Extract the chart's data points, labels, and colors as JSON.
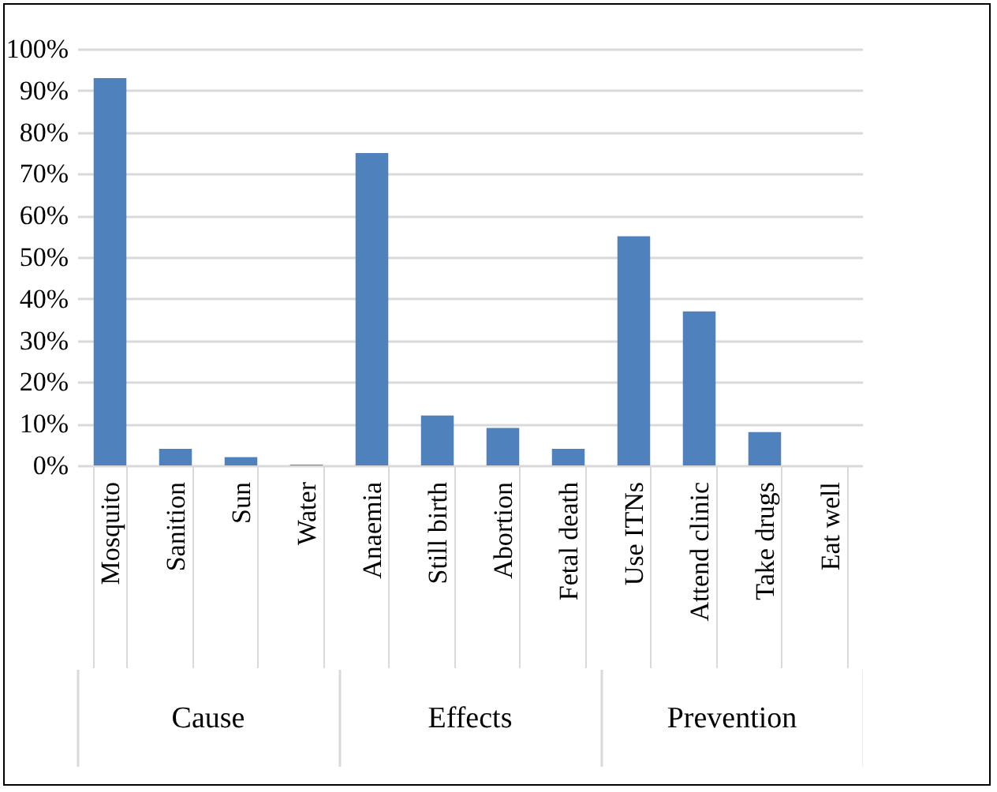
{
  "chart_data": {
    "type": "bar",
    "categories": [
      "Mosquito",
      "Sanition",
      "Sun",
      "Water",
      "Anaemia",
      "Still birth",
      "Abortion",
      "Fetal death",
      "Use ITNs",
      "Attend clinic",
      "Take drugs",
      "Eat well"
    ],
    "values": [
      93,
      4,
      2,
      0.2,
      75,
      12,
      9,
      4,
      55,
      37,
      8,
      0
    ],
    "color": "#4f81bd",
    "ylim": [
      0,
      100
    ],
    "yticks": [
      {
        "value": 0,
        "label": "0%"
      },
      {
        "value": 10,
        "label": "10%"
      },
      {
        "value": 20,
        "label": "20%"
      },
      {
        "value": 30,
        "label": "30%"
      },
      {
        "value": 40,
        "label": "40%"
      },
      {
        "value": 50,
        "label": "50%"
      },
      {
        "value": 60,
        "label": "60%"
      },
      {
        "value": 70,
        "label": "70%"
      },
      {
        "value": 80,
        "label": "80%"
      },
      {
        "value": 90,
        "label": "90%"
      },
      {
        "value": 100,
        "label": "100%"
      }
    ],
    "grid": "y",
    "annotations": [
      "Cause",
      "Effects",
      "Prevention"
    ]
  }
}
